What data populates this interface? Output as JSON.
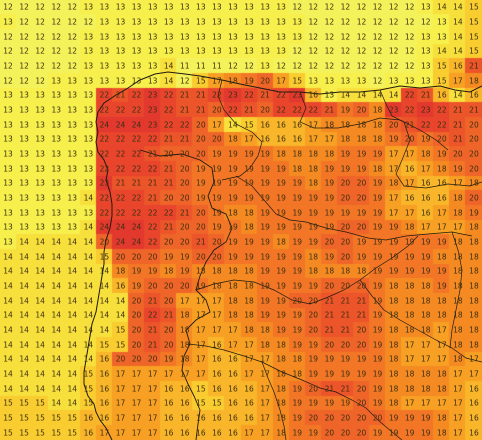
{
  "map": {
    "type": "temperature-grid",
    "columns": 30,
    "rows": 30,
    "values": [
      "12 12 12 12 12 13 13 13 13 13 13 13 13 13 13 13 13 13 12 12 12 12 12 12 12 12 13 14 14 15",
      "13 12 12 12 12 12 13 13 13 13 13 13 13 13 13 13 13 13 13 12 12 12 12 12 12 12 12 13 14 15",
      "12 12 12 12 12 13 13 13 13 13 13 13 13 13 13 13 13 13 13 12 12 12 12 12 12 12 13 13 14 15",
      "12 12 12 12 12 13 13 13 13 13 13 13 13 13 13 13 13 13 12 12 12 12 12 12 12 12 13 14 14 15",
      "12 12 12 12 12 13 13 13 13 13 14 11 11 11 12 12 13 12 12 12 12 12 12 12 12 12 13 15 16 21",
      "12 12 12 13 13 13 13 13 13 13 14 12 15 17 18 19 20 17 15 13 13 13 13 12 13 13 13 15 17 18",
      "13 13 13 13 13 13 22 21 22 23 22 21 21 22 23 22 21 22 23 16 13 14 14 14 14 22 21 16 14 16",
      "13 13 13 13 13 13 22 22 22 23 22 21 21 20 22 21 20 22 22 22 21 19 20 18 23 22 23 22 21 21",
      "13 13 13 13 13 13 24 24 24 23 22 22 20 17 14 15 16 16 16 17 18 18 18 18 20 21 22 22 21 20",
      "13 13 13 13 13 13 22 22 22 22 21 21 20 20 18 17 16 16 16 17 17 18 18 18 19 20 19 20 21 20",
      "13 13 13 13 13 13 22 22 22 21 20 20 20 19 19 19 19 18 18 18 18 19 19 19 17 17 18 19 20 20",
      "13 13 13 13 13 13 22 22 22 22 21 20 19 19 19 19 19 19 18 18 19 19 19 18 17 16 17 18 19 20",
      "13 13 13 13 13 13 23 21 21 21 21 20 19 19 19 19 19 19 19 18 19 20 20 19 18 17 16 16 17 18",
      "13 13 13 13 13 14 22 22 22 21 20 20 19 19 19 19 19 19 19 19 19 20 20 19 17 16 16 16 18 20",
      "13 13 13 13 13 13 22 22 22 22 22 21 20 19 18 18 19 19 19 19 19 19 19 19 17 17 16 17 18 19",
      "13 13 13 13 13 14 24 24 24 22 21 20 20 19 19 18 19 19 19 19 19 20 20 19 19 18 17 17 17 18",
      "13 14 14 14 14 14 20 24 24 22 20 20 21 20 19 19 19 18 19 19 20 20 19 19 19 19 19 19 18 18",
      "14 14 14 14 14 14 15 20 20 20 19 19 20 20 19 19 19 19 19 18 19 20 19 19 19 19 19 18 18 18",
      "14 14 14 14 14 14 14 18 19 19 18 19 18 18 18 18 19 19 19 18 18 18 18 19 19 19 19 19 18 18",
      "14 14 14 14 14 14 14 16 19 20 20 20 19 18 18 18 19 19 19 19 20 20 20 19 18 18 18 19 18 18",
      "14 14 14 14 14 14 14 14 20 21 20 17 17 17 18 18 19 19 20 20 21 21 21 19 18 18 18 18 18 18",
      "14 14 14 14 14 14 14 14 20 22 21 18 17 17 18 18 19 19 19 20 21 21 21 19 18 18 18 18 18 18",
      "14 14 14 14 14 14 14 15 20 21 20 18 17 17 17 18 18 19 19 20 21 21 20 19 18 18 18 17 18 18",
      "14 14 14 14 14 14 15 15 20 21 20 18 17 16 17 17 18 18 19 19 20 20 20 19 18 17 17 17 18 18",
      "14 14 14 14 14 14 16 20 20 20 19 18 17 16 16 17 17 18 18 19 19 19 19 19 18 17 17 17 18 17",
      "14 14 14 14 14 15 16 17 17 17 17 17 17 16 16 17 17 18 18 19 19 19 19 19 18 18 18 18 17 17",
      "14 14 14 14 14 15 16 17 17 17 16 16 15 16 16 16 17 18 19 20 21 21 20 19 18 18 18 18 17 16",
      "15 15 15 14 14 15 16 17 17 17 16 16 15 15 16 16 17 18 19 19 19 19 20 19 18 17 17 17 17 16",
      "15 15 15 15 15 16 16 17 17 17 16 16 16 16 16 16 17 18 19 20 20 20 20 20 19 19 19 18 17 16",
      "15 15 15 15 15 16 17 17 17 17 16 16 16 16 16 17 17 18 19 19 20 20 20 19 19 19 19 18 17 16"
    ]
  }
}
